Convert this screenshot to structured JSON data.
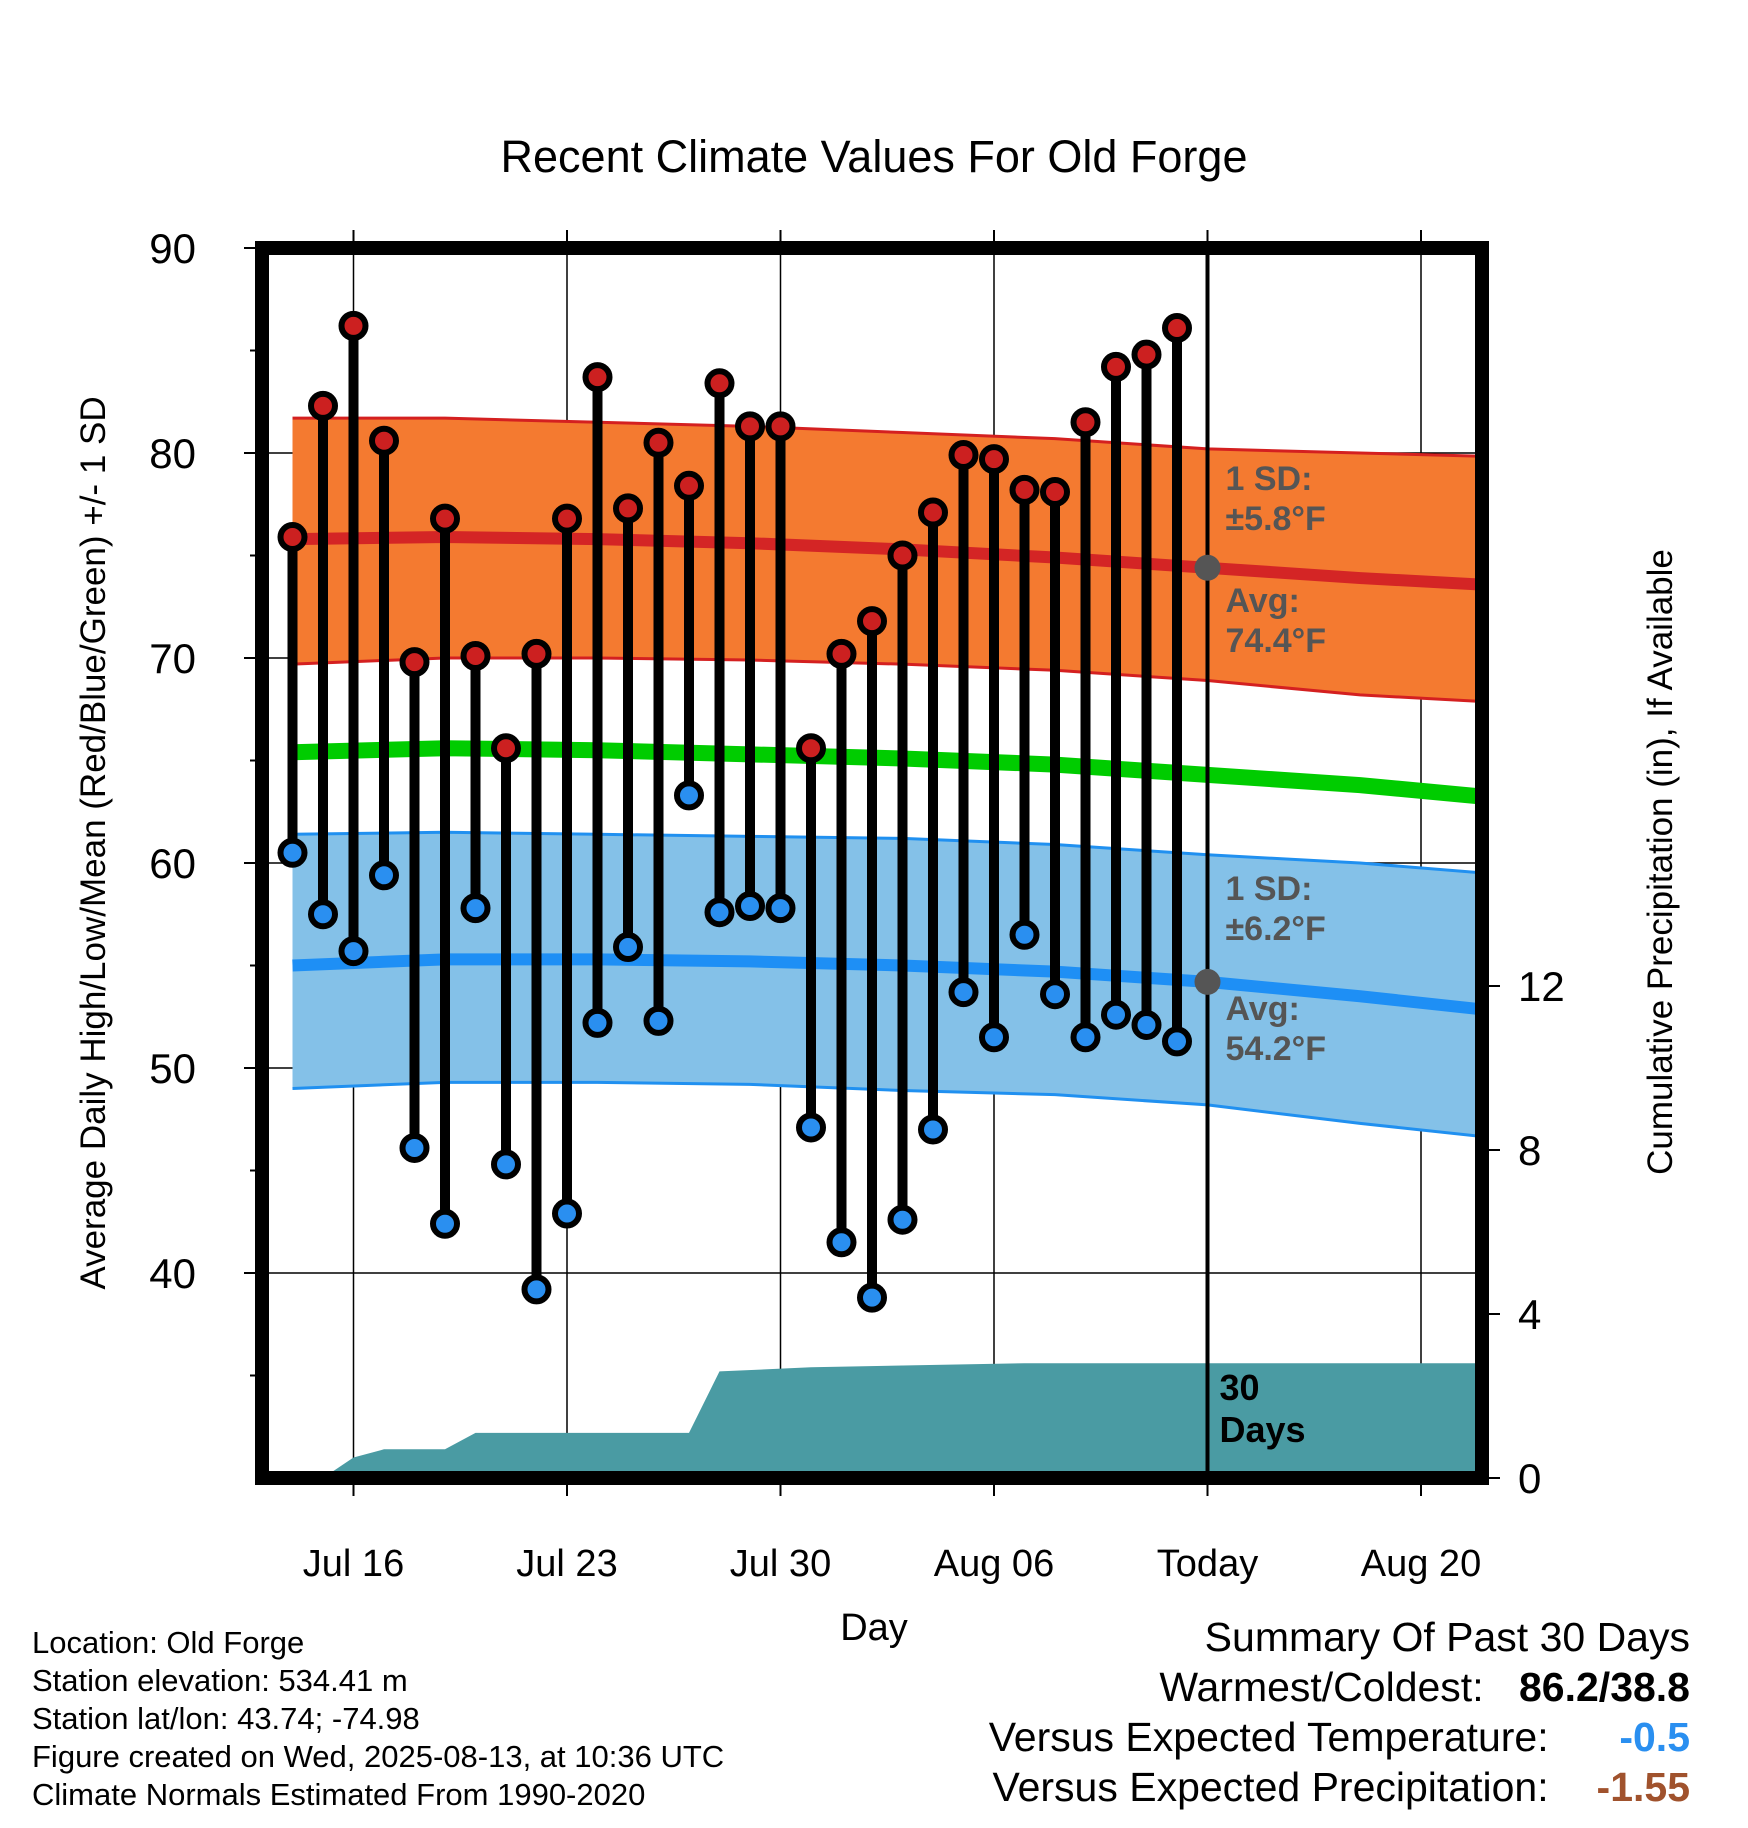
{
  "chart_data": {
    "type": "line",
    "title": "Recent Climate Values For Old Forge",
    "xlabel": "Day",
    "ylabel": "Average Daily High/Low/Mean (Red/Blue/Green) +/- 1 SD",
    "y2label": "Cumulative Precipitation (in), If Available",
    "ylim": [
      30,
      90
    ],
    "y2lim": [
      0,
      30
    ],
    "yticks": [
      40,
      50,
      60,
      70,
      80,
      90
    ],
    "y2ticks": [
      0,
      4,
      8,
      12
    ],
    "xlim": [
      "2025-07-13",
      "2025-08-22"
    ],
    "xticks": [
      {
        "date": "2025-07-16",
        "label": "Jul 16"
      },
      {
        "date": "2025-07-23",
        "label": "Jul 23"
      },
      {
        "date": "2025-07-30",
        "label": "Jul 30"
      },
      {
        "date": "2025-08-06",
        "label": "Aug 06"
      },
      {
        "date": "2025-08-13",
        "label": "Today"
      },
      {
        "date": "2025-08-20",
        "label": "Aug 20"
      }
    ],
    "grid": true,
    "dates": [
      "2025-07-14",
      "2025-07-15",
      "2025-07-16",
      "2025-07-17",
      "2025-07-18",
      "2025-07-19",
      "2025-07-20",
      "2025-07-21",
      "2025-07-22",
      "2025-07-23",
      "2025-07-24",
      "2025-07-25",
      "2025-07-26",
      "2025-07-27",
      "2025-07-28",
      "2025-07-29",
      "2025-07-30",
      "2025-07-31",
      "2025-08-01",
      "2025-08-02",
      "2025-08-03",
      "2025-08-04",
      "2025-08-05",
      "2025-08-06",
      "2025-08-07",
      "2025-08-08",
      "2025-08-09",
      "2025-08-10",
      "2025-08-11",
      "2025-08-12"
    ],
    "series": [
      {
        "name": "High",
        "color": "#cc2020",
        "values": [
          75.9,
          82.3,
          86.2,
          80.6,
          69.8,
          76.8,
          70.1,
          65.6,
          70.2,
          76.8,
          83.7,
          77.3,
          80.5,
          78.4,
          83.4,
          81.3,
          81.3,
          65.6,
          70.2,
          71.8,
          75.0,
          77.1,
          79.9,
          79.7,
          78.2,
          78.1,
          81.5,
          84.2,
          84.8,
          86.1
        ]
      },
      {
        "name": "Low",
        "color": "#2090ee",
        "values": [
          60.5,
          57.5,
          55.7,
          59.4,
          46.1,
          42.4,
          57.8,
          45.3,
          39.2,
          42.9,
          52.2,
          55.9,
          52.3,
          63.3,
          57.6,
          57.9,
          57.8,
          47.1,
          41.5,
          38.8,
          42.6,
          47.0,
          53.7,
          51.5,
          56.5,
          53.6,
          51.5,
          52.6,
          52.1,
          51.3
        ]
      }
    ],
    "normals": {
      "dates": [
        "2025-07-14",
        "2025-07-19",
        "2025-07-24",
        "2025-07-29",
        "2025-08-03",
        "2025-08-08",
        "2025-08-13",
        "2025-08-18",
        "2025-08-23"
      ],
      "high_avg": [
        75.8,
        75.9,
        75.8,
        75.6,
        75.3,
        74.9,
        74.4,
        73.9,
        73.5
      ],
      "high_upper": [
        81.7,
        81.7,
        81.5,
        81.3,
        81.0,
        80.7,
        80.2,
        80.0,
        79.8
      ],
      "high_lower": [
        69.7,
        70.0,
        70.0,
        69.9,
        69.7,
        69.4,
        68.9,
        68.2,
        67.8
      ],
      "low_avg": [
        55.0,
        55.3,
        55.3,
        55.2,
        55.0,
        54.7,
        54.2,
        53.5,
        52.7
      ],
      "low_upper": [
        61.4,
        61.5,
        61.4,
        61.3,
        61.2,
        60.9,
        60.4,
        60.0,
        59.4
      ],
      "low_lower": [
        49.0,
        49.3,
        49.3,
        49.2,
        48.9,
        48.7,
        48.2,
        47.3,
        46.5
      ],
      "mean": [
        65.4,
        65.6,
        65.5,
        65.3,
        65.1,
        64.8,
        64.3,
        63.8,
        63.1
      ]
    },
    "precip_cumulative": {
      "dates": [
        "2025-07-13",
        "2025-07-15",
        "2025-07-16",
        "2025-07-17",
        "2025-07-19",
        "2025-07-20",
        "2025-07-27",
        "2025-07-28",
        "2025-07-31",
        "2025-08-07",
        "2025-08-22"
      ],
      "values": [
        0,
        0,
        0.5,
        0.7,
        0.7,
        1.1,
        1.1,
        2.6,
        2.7,
        2.8,
        2.8
      ]
    },
    "annotations": {
      "high_sd": {
        "line1": "1 SD:",
        "line2": "±5.8°F"
      },
      "high_avg": {
        "line1": "Avg:",
        "line2": "74.4°F",
        "value": 74.4
      },
      "low_sd": {
        "line1": "1 SD:",
        "line2": "±6.2°F"
      },
      "low_avg": {
        "line1": "Avg:",
        "line2": "54.2°F",
        "value": 54.2
      },
      "period": {
        "line1": "30",
        "line2": "Days"
      }
    }
  },
  "metadata": {
    "location": "Location: Old Forge",
    "elevation": "Station elevation: 534.41 m",
    "latlon": "Station lat/lon: 43.74; -74.98",
    "created": "Figure created on Wed, 2025-08-13, at 10:36 UTC",
    "normals": "Climate Normals Estimated From 1990-2020"
  },
  "summary": {
    "title": "Summary Of Past 30 Days",
    "warmest_label": "Warmest/Coldest:",
    "warmest_value": "86.2/38.8",
    "temp_label": "Versus Expected Temperature:",
    "temp_value": "-0.5",
    "temp_color": "#2a8ff0",
    "precip_label": "Versus Expected Precipitation:",
    "precip_value": "-1.55",
    "precip_color": "#a0522d"
  }
}
